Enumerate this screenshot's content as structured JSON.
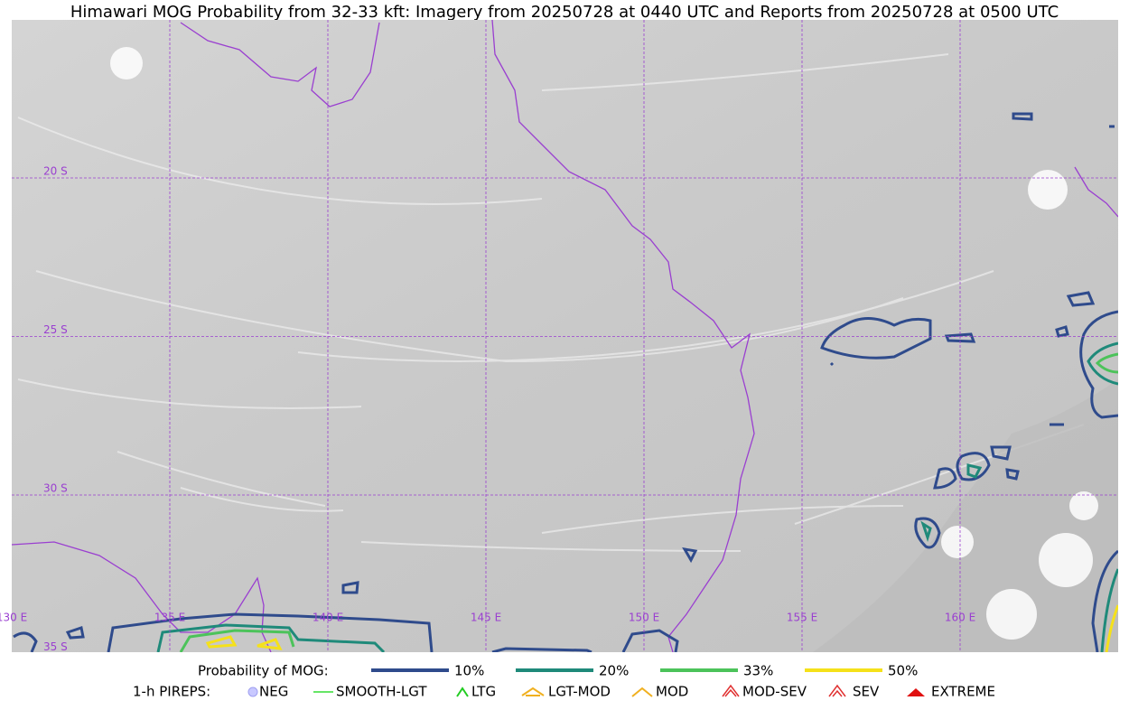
{
  "title": "Himawari MOG Probability from 32-33 kft: Imagery from 20250728 at 0440 UTC and Reports from 20250728 at 0500 UTC",
  "map": {
    "lat_labels": [
      "20 S",
      "25 S",
      "30 S",
      "35 S"
    ],
    "lon_labels": [
      "130 E",
      "135 E",
      "140 E",
      "145 E",
      "150 E",
      "155 E",
      "160 E"
    ]
  },
  "legend": {
    "probability": {
      "label": "Probability of MOG:",
      "items": [
        "10%",
        "20%",
        "33%",
        "50%"
      ]
    },
    "pireps": {
      "label": "1-h PIREPS:",
      "items": [
        "NEG",
        "SMOOTH-LGT",
        "LTG",
        "LGT-MOD",
        "MOD",
        "MOD-SEV",
        "SEV",
        "EXTREME"
      ]
    }
  }
}
